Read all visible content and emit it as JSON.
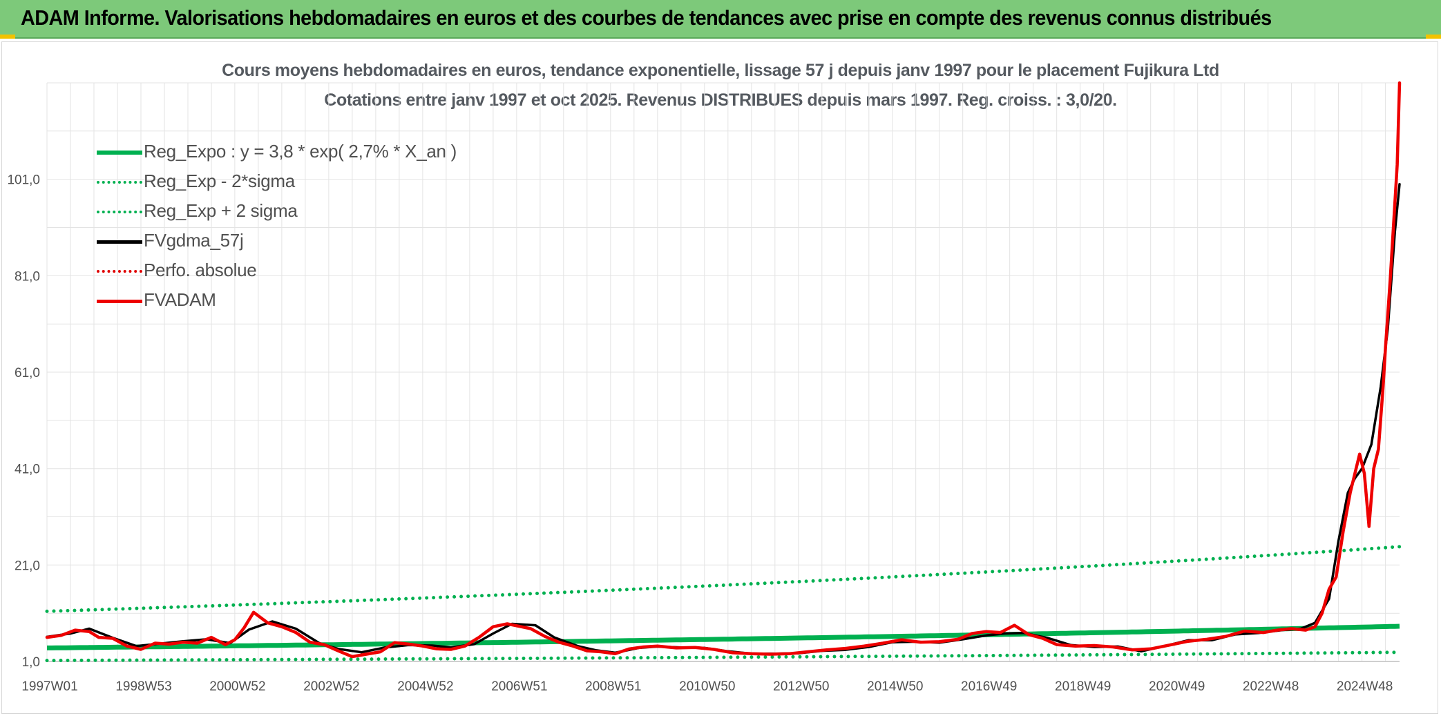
{
  "banner": {
    "title": "ADAM Informe. Valorisations hebdomadaires en euros et des courbes de tendances avec prise en compte des revenus connus distribués"
  },
  "chart_data": {
    "type": "line",
    "title": "Cours moyens hebdomadaires en euros, tendance exponentielle, lissage 57 j depuis janv 1997 pour le placement Fujikura Ltd",
    "subtitle": "Cotations entre janv 1997 et oct 2025. Revenus DISTRIBUES depuis mars 1997. Reg. croiss. : 3,0/20.",
    "xlabel": "",
    "ylabel": "",
    "x_range": [
      1997.0,
      2025.8
    ],
    "ylim": [
      1.0,
      121.0
    ],
    "y_ticks": [
      "1,0",
      "21,0",
      "41,0",
      "61,0",
      "81,0",
      "101,0"
    ],
    "y_tick_values": [
      1,
      21,
      41,
      61,
      81,
      101
    ],
    "x_ticks": [
      "1997W01",
      "1998W53",
      "2000W52",
      "2002W52",
      "2004W52",
      "2006W51",
      "2008W51",
      "2010W50",
      "2012W50",
      "2014W50",
      "2016W49",
      "2018W49",
      "2020W49",
      "2022W48",
      "2024W48"
    ],
    "x_tick_values": [
      1997.0,
      1999.0,
      2001.0,
      2003.0,
      2005.0,
      2007.0,
      2009.0,
      2011.0,
      2013.0,
      2015.0,
      2017.0,
      2019.0,
      2021.0,
      2023.0,
      2025.0
    ],
    "grid": true,
    "legend_position": "top-left",
    "series": [
      {
        "name": "Reg_Expo : y = 3,8 * exp( 2,7% *  X_an )",
        "color": "#00b050",
        "style": "solid",
        "x": [
          1997.0,
          2025.8
        ],
        "values": [
          3.8,
          8.3
        ]
      },
      {
        "name": "Reg_Exp - 2*sigma",
        "color": "#00b050",
        "style": "dotted",
        "x": [
          1997.0,
          2025.8
        ],
        "values": [
          1.2,
          2.9
        ]
      },
      {
        "name": "Reg_Exp + 2 sigma",
        "color": "#00b050",
        "style": "dotted",
        "x": [
          1997.0,
          2025.8
        ],
        "values": [
          11.4,
          24.8
        ]
      },
      {
        "name": "FVgdma_57j",
        "color": "#000000",
        "style": "solid",
        "x": [
          1997.0,
          1997.5,
          1997.9,
          1998.4,
          1998.9,
          1999.4,
          1999.9,
          2000.4,
          2000.9,
          2001.3,
          2001.8,
          2002.3,
          2002.8,
          2003.2,
          2003.7,
          2004.2,
          2004.7,
          2005.2,
          2005.6,
          2006.1,
          2006.5,
          2006.9,
          2007.4,
          2007.8,
          2008.3,
          2008.7,
          2009.1,
          2009.6,
          2010.0,
          2010.5,
          2011.0,
          2011.5,
          2012.0,
          2012.5,
          2013.0,
          2013.5,
          2014.0,
          2014.5,
          2015.0,
          2015.5,
          2016.0,
          2016.5,
          2017.0,
          2017.4,
          2017.8,
          2018.3,
          2018.8,
          2019.3,
          2019.8,
          2020.3,
          2020.8,
          2021.3,
          2021.8,
          2022.3,
          2022.8,
          2023.3,
          2023.7,
          2024.0,
          2024.3,
          2024.5,
          2024.7,
          2024.85,
          2025.0,
          2025.2,
          2025.4,
          2025.55,
          2025.7,
          2025.8
        ],
        "values": [
          6.1,
          6.8,
          7.8,
          5.9,
          4.2,
          4.7,
          5.2,
          5.6,
          4.8,
          7.6,
          9.3,
          7.8,
          4.8,
          3.6,
          2.9,
          3.9,
          4.4,
          4.3,
          3.9,
          4.6,
          6.8,
          8.8,
          8.5,
          6.0,
          4.2,
          3.3,
          2.8,
          3.8,
          4.1,
          3.9,
          3.8,
          3.1,
          2.6,
          2.6,
          2.7,
          3.2,
          3.4,
          4.0,
          5.0,
          5.1,
          4.9,
          5.6,
          6.4,
          6.8,
          6.9,
          5.9,
          4.4,
          4.0,
          4.1,
          3.1,
          4.2,
          5.4,
          5.4,
          6.6,
          6.9,
          7.5,
          7.8,
          9.0,
          14.0,
          26.0,
          36.0,
          39.0,
          41.0,
          46.0,
          58.0,
          70.0,
          90.0,
          100.0
        ]
      },
      {
        "name": "Perfo. absolue",
        "color": "#e00000",
        "style": "dotted",
        "x": [],
        "values": []
      },
      {
        "name": "FVADAM",
        "color": "#ee0000",
        "style": "solid",
        "x": [
          1997.0,
          1997.3,
          1997.6,
          1997.9,
          1998.1,
          1998.4,
          1998.7,
          1999.0,
          1999.3,
          1999.6,
          1999.9,
          2000.2,
          2000.5,
          2000.8,
          2001.0,
          2001.2,
          2001.4,
          2001.7,
          2002.0,
          2002.3,
          2002.6,
          2002.9,
          2003.2,
          2003.5,
          2003.8,
          2004.1,
          2004.4,
          2004.7,
          2005.0,
          2005.3,
          2005.6,
          2005.9,
          2006.2,
          2006.5,
          2006.8,
          2007.0,
          2007.3,
          2007.6,
          2007.9,
          2008.2,
          2008.5,
          2008.8,
          2009.1,
          2009.4,
          2009.7,
          2010.0,
          2010.4,
          2010.8,
          2011.2,
          2011.6,
          2012.0,
          2012.4,
          2012.8,
          2013.2,
          2013.6,
          2014.0,
          2014.4,
          2014.8,
          2015.2,
          2015.6,
          2016.0,
          2016.4,
          2016.7,
          2017.0,
          2017.3,
          2017.6,
          2017.9,
          2018.2,
          2018.5,
          2018.9,
          2019.3,
          2019.7,
          2020.1,
          2020.5,
          2020.9,
          2021.3,
          2021.7,
          2022.1,
          2022.5,
          2022.9,
          2023.2,
          2023.5,
          2023.8,
          2024.0,
          2024.15,
          2024.3,
          2024.45,
          2024.6,
          2024.75,
          2024.85,
          2024.95,
          2025.05,
          2025.15,
          2025.25,
          2025.35,
          2025.45,
          2025.5,
          2025.6,
          2025.7,
          2025.75,
          2025.8
        ],
        "values": [
          6.0,
          6.4,
          7.5,
          7.2,
          6.0,
          5.8,
          4.2,
          3.5,
          4.8,
          4.6,
          5.0,
          4.8,
          6.0,
          4.5,
          5.5,
          8.0,
          11.2,
          9.0,
          8.2,
          7.0,
          5.0,
          4.5,
          3.2,
          2.0,
          2.5,
          3.0,
          4.9,
          4.6,
          4.2,
          3.6,
          3.5,
          4.2,
          6.0,
          8.2,
          8.8,
          8.4,
          7.8,
          6.2,
          5.0,
          4.2,
          3.2,
          3.0,
          2.6,
          3.6,
          4.0,
          4.2,
          3.8,
          3.9,
          3.5,
          2.8,
          2.6,
          2.5,
          2.6,
          3.0,
          3.4,
          3.7,
          4.2,
          4.8,
          5.5,
          5.0,
          5.1,
          5.6,
          6.8,
          7.2,
          7.0,
          8.5,
          6.6,
          5.8,
          4.5,
          4.2,
          4.3,
          4.0,
          3.4,
          3.6,
          4.4,
          5.2,
          5.6,
          6.2,
          7.3,
          7.0,
          7.5,
          7.8,
          7.5,
          8.2,
          11.0,
          16.0,
          18.5,
          28.0,
          36.0,
          40.0,
          44.0,
          40.0,
          29.0,
          41.0,
          45.0,
          58.0,
          66.0,
          80.0,
          96.0,
          104.0,
          121.0
        ]
      }
    ]
  }
}
